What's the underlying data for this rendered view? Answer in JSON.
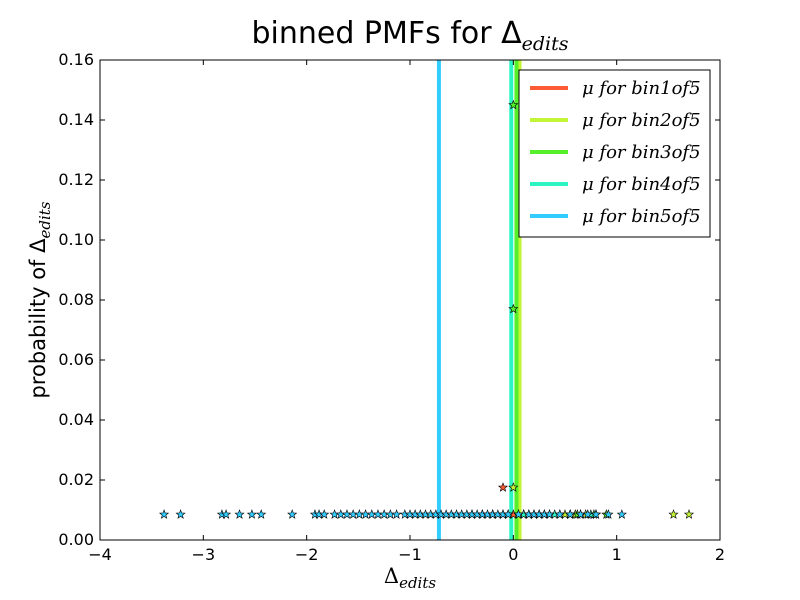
{
  "chart_data": {
    "type": "scatter",
    "title": "binned PMFs for Δ",
    "title_sub": "edits",
    "xlabel": "Δ",
    "xlabel_sub": "edits",
    "ylabel": "probability of Δ",
    "ylabel_sub": "edits",
    "xlim": [
      -4,
      2
    ],
    "ylim": [
      0,
      0.16
    ],
    "x_ticks": [
      -4,
      -3,
      -2,
      -1,
      0,
      1,
      2
    ],
    "x_tick_labels": [
      "−4",
      "−3",
      "−2",
      "−1",
      "0",
      "1",
      "2"
    ],
    "y_ticks": [
      0.0,
      0.02,
      0.04,
      0.06,
      0.08,
      0.1,
      0.12,
      0.14,
      0.16
    ],
    "y_tick_labels": [
      "0.00",
      "0.02",
      "0.04",
      "0.06",
      "0.08",
      "0.10",
      "0.12",
      "0.14",
      "0.16"
    ],
    "grid": false,
    "legend_position": "top-right",
    "marker": "star",
    "series": [
      {
        "name": "μ for bin1of5",
        "color": "#ff5a36",
        "mean": 0.055,
        "points": [
          [
            -0.1,
            0.0175
          ],
          [
            -0.05,
            0.0085
          ],
          [
            0.0,
            0.0085
          ],
          [
            0.05,
            0.0085
          ],
          [
            0.1,
            0.0085
          ],
          [
            0.15,
            0.0085
          ]
        ]
      },
      {
        "name": "μ for bin2of5",
        "color": "#c3f537",
        "mean": 0.06,
        "points": [
          [
            0.0,
            0.0175
          ],
          [
            0.5,
            0.0085
          ],
          [
            0.55,
            0.0085
          ],
          [
            0.6,
            0.0085
          ],
          [
            0.7,
            0.0085
          ],
          [
            0.8,
            0.0085
          ],
          [
            1.55,
            0.0085
          ],
          [
            1.7,
            0.0085
          ],
          [
            0.1,
            0.0085
          ],
          [
            0.2,
            0.0085
          ],
          [
            0.3,
            0.0085
          ]
        ]
      },
      {
        "name": "μ for bin3of5",
        "color": "#55f02a",
        "mean": 0.03,
        "points": [
          [
            0.0,
            0.145
          ],
          [
            0.0,
            0.077
          ],
          [
            0.62,
            0.0085
          ],
          [
            0.78,
            0.0085
          ],
          [
            0.9,
            0.0085
          ],
          [
            -0.2,
            0.0085
          ],
          [
            -0.1,
            0.0085
          ],
          [
            0.25,
            0.0085
          ],
          [
            0.35,
            0.0085
          ]
        ]
      },
      {
        "name": "μ for bin4of5",
        "color": "#2cf5c4",
        "mean": -0.02,
        "points": [
          [
            0.45,
            0.0085
          ],
          [
            0.55,
            0.0085
          ],
          [
            0.65,
            0.0085
          ],
          [
            0.75,
            0.0085
          ],
          [
            -0.4,
            0.0085
          ],
          [
            -0.3,
            0.0085
          ],
          [
            -0.2,
            0.0085
          ],
          [
            0.1,
            0.0085
          ],
          [
            0.4,
            0.0085
          ]
        ]
      },
      {
        "name": "μ for bin5of5",
        "color": "#33ccff",
        "mean": -0.72,
        "points": [
          [
            -3.38,
            0.0085
          ],
          [
            -3.22,
            0.0085
          ],
          [
            -2.82,
            0.0085
          ],
          [
            -2.78,
            0.0085
          ],
          [
            -2.65,
            0.0085
          ],
          [
            -2.53,
            0.0085
          ],
          [
            -2.44,
            0.0085
          ],
          [
            -2.14,
            0.0085
          ],
          [
            -1.92,
            0.0085
          ],
          [
            -1.88,
            0.0085
          ],
          [
            -1.83,
            0.0085
          ],
          [
            -1.73,
            0.0085
          ],
          [
            -1.67,
            0.0085
          ],
          [
            -1.61,
            0.0085
          ],
          [
            -1.55,
            0.0085
          ],
          [
            -1.49,
            0.0085
          ],
          [
            -1.43,
            0.0085
          ],
          [
            -1.37,
            0.0085
          ],
          [
            -1.31,
            0.0085
          ],
          [
            -1.25,
            0.0085
          ],
          [
            -1.19,
            0.0085
          ],
          [
            -1.13,
            0.0085
          ],
          [
            -1.05,
            0.0085
          ],
          [
            -1.0,
            0.0085
          ],
          [
            -0.95,
            0.0085
          ],
          [
            -0.9,
            0.0085
          ],
          [
            -0.85,
            0.0085
          ],
          [
            -0.8,
            0.0085
          ],
          [
            -0.75,
            0.0085
          ],
          [
            -0.7,
            0.0085
          ],
          [
            -0.65,
            0.0085
          ],
          [
            -0.6,
            0.0085
          ],
          [
            -0.55,
            0.0085
          ],
          [
            -0.5,
            0.0085
          ],
          [
            -0.45,
            0.0085
          ],
          [
            -0.4,
            0.0085
          ],
          [
            -0.35,
            0.0085
          ],
          [
            -0.3,
            0.0085
          ],
          [
            -0.25,
            0.0085
          ],
          [
            -0.2,
            0.0085
          ],
          [
            -0.15,
            0.0085
          ],
          [
            -0.1,
            0.0085
          ],
          [
            -0.05,
            0.0085
          ],
          [
            0.05,
            0.0085
          ],
          [
            0.15,
            0.0085
          ],
          [
            0.2,
            0.0085
          ],
          [
            0.25,
            0.0085
          ],
          [
            0.3,
            0.0085
          ],
          [
            0.35,
            0.0085
          ],
          [
            0.45,
            0.0085
          ],
          [
            0.55,
            0.0085
          ],
          [
            0.65,
            0.0085
          ],
          [
            0.72,
            0.0085
          ],
          [
            0.8,
            0.0085
          ],
          [
            0.92,
            0.0085
          ],
          [
            1.05,
            0.0085
          ]
        ]
      }
    ]
  }
}
